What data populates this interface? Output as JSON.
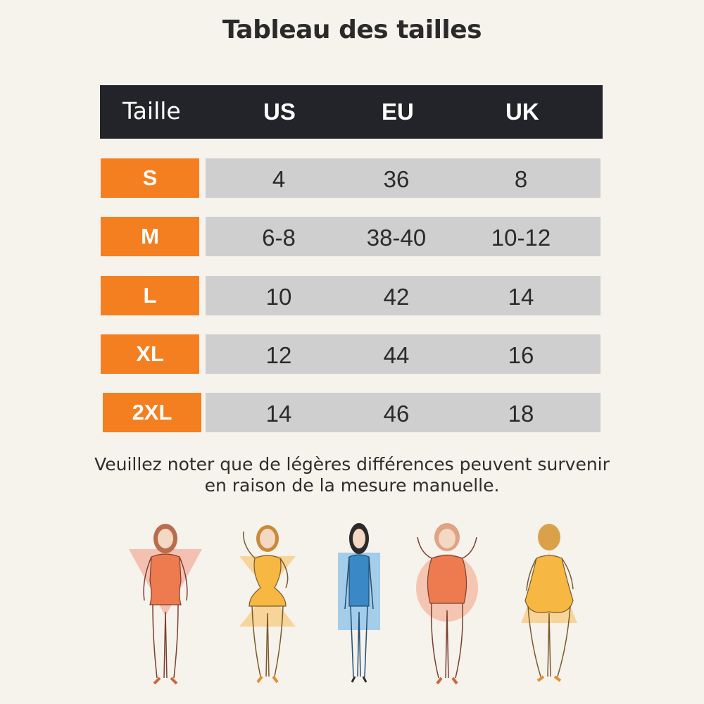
{
  "title": "Tableau des tailles",
  "table": {
    "headers": [
      "Taille",
      "US",
      "EU",
      "UK"
    ],
    "rows": [
      {
        "size": "S",
        "us": "4",
        "eu": "36",
        "uk": "8"
      },
      {
        "size": "M",
        "us": "6-8",
        "eu": "38-40",
        "uk": "10-12"
      },
      {
        "size": "L",
        "us": "10",
        "eu": "42",
        "uk": "14"
      },
      {
        "size": "XL",
        "us": "12",
        "eu": "44",
        "uk": "16"
      },
      {
        "size": "2XL",
        "us": "14",
        "eu": "46",
        "uk": "18"
      }
    ]
  },
  "note": {
    "line1": "Veuillez noter que de légères différences peuvent survenir",
    "line2": "en raison de la mesure manuelle."
  },
  "colors": {
    "background": "#f6f2ec",
    "header": "#232429",
    "size_cell": "#f47f20",
    "value_cell": "#cfcfcf"
  },
  "illustrations": [
    {
      "icon": "woman-body-shape-icon",
      "swimsuit": "#ee7a4f",
      "shape": "inverted-triangle",
      "shape_color": "#f2b3a3"
    },
    {
      "icon": "woman-body-shape-icon",
      "swimsuit": "#f6b743",
      "shape": "hourglass",
      "shape_color": "#f8cc86"
    },
    {
      "icon": "woman-body-shape-icon",
      "swimsuit": "#3a88c4",
      "shape": "rectangle",
      "shape_color": "#8ec3e8"
    },
    {
      "icon": "woman-body-shape-icon",
      "swimsuit": "#ee7a4f",
      "shape": "apple",
      "shape_color": "#f5b9a4"
    },
    {
      "icon": "woman-body-shape-icon",
      "swimsuit": "#f6b743",
      "shape": "pear",
      "shape_color": "#f8cc86"
    }
  ]
}
